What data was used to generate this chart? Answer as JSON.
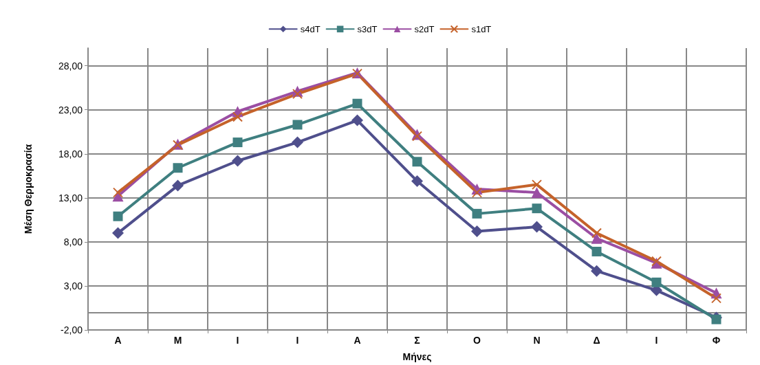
{
  "chart_data": {
    "type": "line",
    "xlabel": "Μήνες",
    "ylabel": "Μέση Θερμοκρασία",
    "categories": [
      "Α",
      "Μ",
      "Ι",
      "Ι",
      "Α",
      "Σ",
      "Ο",
      "Ν",
      "Δ",
      "Ι",
      "Φ"
    ],
    "series": [
      {
        "name": "s4dT",
        "color": "#4f4f8c",
        "marker": "diamond",
        "values": [
          9.0,
          14.4,
          17.2,
          19.3,
          21.8,
          14.9,
          9.2,
          9.7,
          4.7,
          2.5,
          -0.6
        ]
      },
      {
        "name": "s3dT",
        "color": "#3f7f80",
        "marker": "square",
        "values": [
          10.9,
          16.4,
          19.3,
          21.3,
          23.7,
          17.1,
          11.2,
          11.8,
          6.9,
          3.4,
          -0.8
        ]
      },
      {
        "name": "s2dT",
        "color": "#9b4ea3",
        "marker": "triangle",
        "values": [
          13.2,
          19.1,
          22.8,
          25.1,
          27.2,
          20.2,
          14.0,
          13.6,
          8.4,
          5.6,
          2.2
        ]
      },
      {
        "name": "s1dT",
        "color": "#c5622a",
        "marker": "cross",
        "values": [
          13.6,
          19.0,
          22.2,
          24.8,
          27.1,
          20.0,
          13.6,
          14.5,
          9.0,
          5.8,
          1.6
        ]
      }
    ],
    "ylim": [
      -2,
      30
    ],
    "yticks": [
      {
        "value": -2,
        "label": "-2,00"
      },
      {
        "value": 3,
        "label": "3,00"
      },
      {
        "value": 8,
        "label": "8,00"
      },
      {
        "value": 13,
        "label": "13,00"
      },
      {
        "value": 18,
        "label": "18,00"
      },
      {
        "value": 23,
        "label": "23,00"
      },
      {
        "value": 28,
        "label": "28,00"
      }
    ],
    "grid": true,
    "legend": "top",
    "line_style": "solid"
  }
}
